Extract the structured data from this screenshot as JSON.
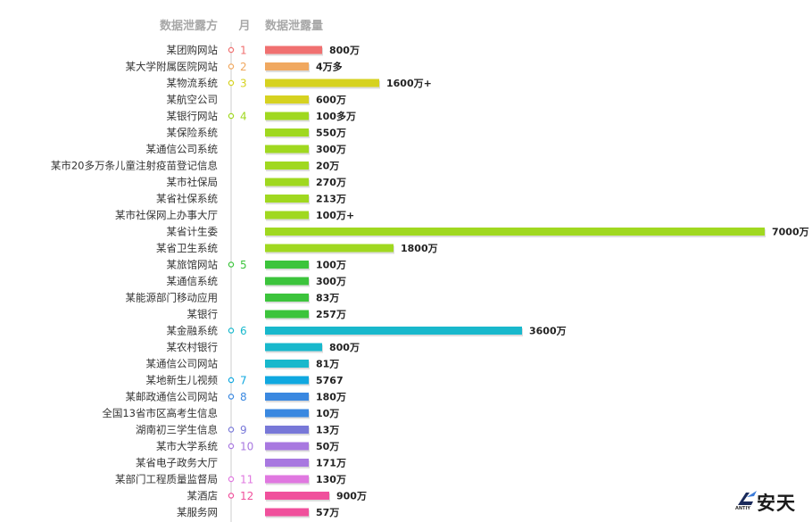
{
  "headers": {
    "source": "数据泄露方",
    "month": "月",
    "amount": "数据泄露量"
  },
  "logo": {
    "cn": "安天",
    "en": "ANTIY"
  },
  "colors": {
    "axis": "#cccccc",
    "header": "#a8a8a8"
  },
  "chart_data": {
    "type": "bar",
    "orientation": "horizontal",
    "title": "",
    "xlabel": "数据泄露量",
    "ylabel": "数据泄露方",
    "unit": "万",
    "xlim": [
      0,
      7000
    ],
    "grid": false,
    "rows": [
      {
        "source": "某团购网站",
        "month": "1",
        "value": 800,
        "label": "800万",
        "color": "#f07070"
      },
      {
        "source": "某大学附属医院网站",
        "month": "2",
        "value": 4,
        "label": "4万多",
        "color": "#f0a860"
      },
      {
        "source": "某物流系统",
        "month": "3",
        "value": 1600,
        "label": "1600万+",
        "color": "#d6d220"
      },
      {
        "source": "某航空公司",
        "month": "",
        "value": 600,
        "label": "600万",
        "color": "#d6d220"
      },
      {
        "source": "某银行网站",
        "month": "4",
        "value": 100,
        "label": "100多万",
        "color": "#a0d820"
      },
      {
        "source": "某保险系统",
        "month": "",
        "value": 550,
        "label": "550万",
        "color": "#a0d820"
      },
      {
        "source": "某通信公司系统",
        "month": "",
        "value": 300,
        "label": "300万",
        "color": "#a0d820"
      },
      {
        "source": "某市20多万条儿童注射疫苗登记信息",
        "month": "",
        "value": 20,
        "label": "20万",
        "color": "#a0d820"
      },
      {
        "source": "某市社保局",
        "month": "",
        "value": 270,
        "label": "270万",
        "color": "#a0d820"
      },
      {
        "source": "某省社保系统",
        "month": "",
        "value": 213,
        "label": "213万",
        "color": "#a0d820"
      },
      {
        "source": "某市社保网上办事大厅",
        "month": "",
        "value": 100,
        "label": "100万+",
        "color": "#a0d820"
      },
      {
        "source": "某省计生委",
        "month": "",
        "value": 7000,
        "label": "7000万",
        "color": "#a0d820"
      },
      {
        "source": "某省卫生系统",
        "month": "",
        "value": 1800,
        "label": "1800万",
        "color": "#a0d820"
      },
      {
        "source": "某旅馆网站",
        "month": "5",
        "value": 100,
        "label": "100万",
        "color": "#3cc43c"
      },
      {
        "source": "某通信系统",
        "month": "",
        "value": 300,
        "label": "300万",
        "color": "#3cc43c"
      },
      {
        "source": "某能源部门移动应用",
        "month": "",
        "value": 83,
        "label": "83万",
        "color": "#3cc43c"
      },
      {
        "source": "某银行",
        "month": "",
        "value": 257,
        "label": "257万",
        "color": "#3cc43c"
      },
      {
        "source": "某金融系统",
        "month": "6",
        "value": 3600,
        "label": "3600万",
        "color": "#18b8cc"
      },
      {
        "source": "某农村银行",
        "month": "",
        "value": 800,
        "label": "800万",
        "color": "#18b8cc"
      },
      {
        "source": "某通信公司网站",
        "month": "",
        "value": 81,
        "label": "81万",
        "color": "#18b8cc"
      },
      {
        "source": "某地新生儿视频",
        "month": "7",
        "value": 0.5767,
        "label": "5767",
        "color": "#10a8e0"
      },
      {
        "source": "某邮政通信公司网站",
        "month": "8",
        "value": 180,
        "label": "180万",
        "color": "#3a88e0"
      },
      {
        "source": "全国13省市区高考生信息",
        "month": "",
        "value": 10,
        "label": "10万",
        "color": "#3a88e0"
      },
      {
        "source": "湖南初三学生信息",
        "month": "9",
        "value": 13,
        "label": "13万",
        "color": "#7878d8"
      },
      {
        "source": "某市大学系统",
        "month": "10",
        "value": 50,
        "label": "50万",
        "color": "#a878e0"
      },
      {
        "source": "某省电子政务大厅",
        "month": "",
        "value": 171,
        "label": "171万",
        "color": "#a878e0"
      },
      {
        "source": "某部门工程质量监督局",
        "month": "11",
        "value": 130,
        "label": "130万",
        "color": "#e078e0"
      },
      {
        "source": "某酒店",
        "month": "12",
        "value": 900,
        "label": "900万",
        "color": "#f0509c"
      },
      {
        "source": "某服务网",
        "month": "",
        "value": 57,
        "label": "57万",
        "color": "#f0509c"
      }
    ]
  }
}
